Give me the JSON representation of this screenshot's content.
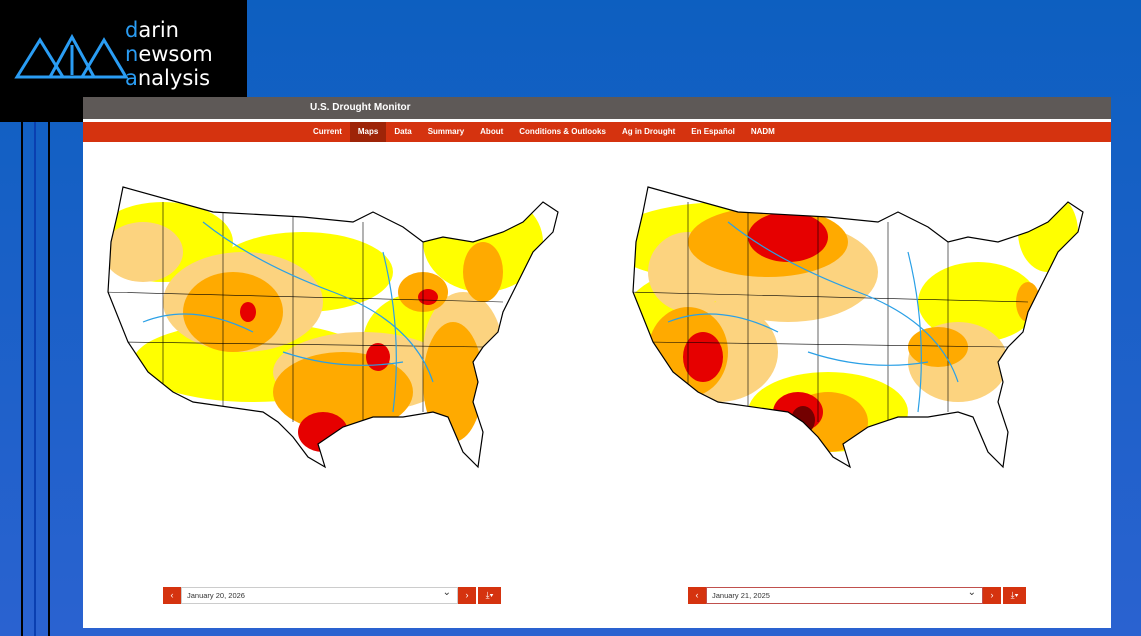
{
  "logo": {
    "lines": [
      "darin",
      "newsom",
      "analysis"
    ]
  },
  "header": {
    "title": "U.S. Drought Monitor"
  },
  "nav": {
    "items": [
      "Current",
      "Maps",
      "Data",
      "Summary",
      "About",
      "Conditions & Outlooks",
      "Ag in Drought",
      "En Español",
      "NADM"
    ],
    "active": "Maps"
  },
  "maps": [
    {
      "date": "January 20, 2026"
    },
    {
      "date": "January 21, 2025"
    }
  ]
}
